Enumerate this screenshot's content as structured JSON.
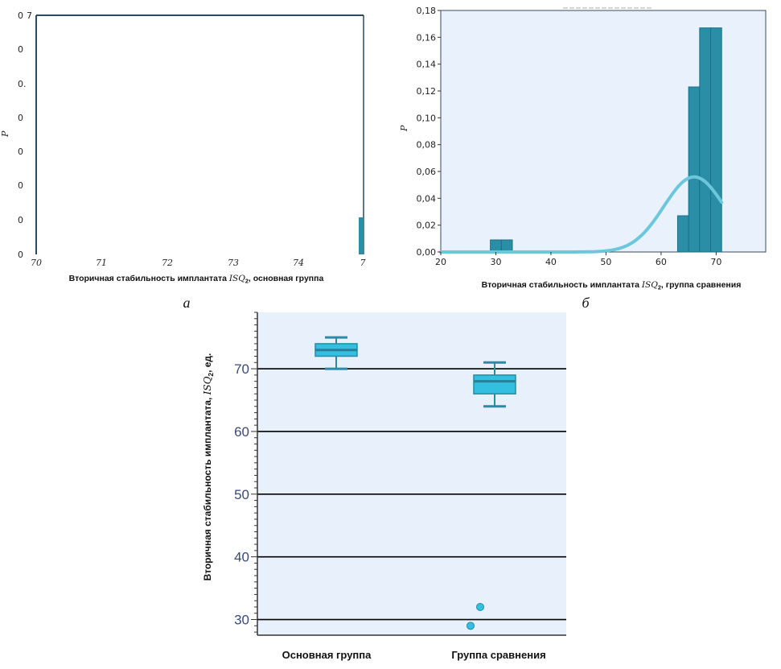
{
  "chart_data": [
    {
      "id": "a",
      "type": "bar",
      "panel_label": "а",
      "ylabel": "P",
      "xlabel": "Вторичная стабильность имплантата",
      "xlabel_var": "ISQ",
      "xlabel_sub": "2",
      "xlabel_suffix": ",   основная группа",
      "y_tick_labels": [
        "0",
        "0",
        "0",
        "0",
        "0",
        "0.",
        "0",
        "0",
        "0"
      ],
      "y_top_label": "7",
      "x_tick_labels": [
        "70",
        "71",
        "72",
        "73",
        "74",
        "7"
      ],
      "values": [
        0.03
      ],
      "note": "cropped panel, only a sliver of a bar at right edge visible"
    },
    {
      "id": "b",
      "type": "bar",
      "panel_label": "б",
      "ylabel": "P",
      "xlabel": "Вторичная стабильность имплантата",
      "xlabel_var": "ISQ",
      "xlabel_sub": "2",
      "xlabel_suffix": ",  группа сравнения",
      "xlim": [
        20,
        79
      ],
      "ylim": [
        0,
        0.18
      ],
      "x_ticks": [
        20,
        30,
        40,
        50,
        60,
        70
      ],
      "x_tick_labels": [
        "20",
        "30",
        "40",
        "50",
        "60",
        "70"
      ],
      "y_ticks": [
        0,
        0.02,
        0.04,
        0.06,
        0.08,
        0.1,
        0.12,
        0.14,
        0.16,
        0.18
      ],
      "y_tick_labels": [
        "0,00",
        "0,02",
        "0,04",
        "0,06",
        "0,08",
        "0,10",
        "0,12",
        "0,14",
        "0,16",
        "0,18"
      ],
      "bins": [
        {
          "x0": 29,
          "x1": 31,
          "value": 0.009
        },
        {
          "x0": 31,
          "x1": 33,
          "value": 0.009
        },
        {
          "x0": 63,
          "x1": 65,
          "value": 0.027
        },
        {
          "x0": 65,
          "x1": 67,
          "value": 0.123
        },
        {
          "x0": 67,
          "x1": 69,
          "value": 0.167
        },
        {
          "x0": 69,
          "x1": 71,
          "value": 0.167
        }
      ],
      "density_curve": {
        "mean": 66,
        "sd": 5.5,
        "scale": 0.056,
        "x_from": 20,
        "x_to": 71
      }
    },
    {
      "id": "box",
      "type": "box",
      "ylabel": "Вторичная стабильность имплантата, ",
      "ylabel_var": "ISQ",
      "ylabel_sub": "2",
      "ylabel_suffix": ", ед.",
      "categories": [
        "Основная группа",
        "Группа сравнения"
      ],
      "ylim": [
        27.5,
        79
      ],
      "y_ticks": [
        30,
        40,
        50,
        60,
        70
      ],
      "y_tick_labels": [
        "30",
        "40",
        "50",
        "60",
        "70"
      ],
      "boxes": [
        {
          "name": "Основная группа",
          "whisker_low": 70,
          "q1": 72,
          "median": 73,
          "q3": 74,
          "whisker_high": 75,
          "outliers": []
        },
        {
          "name": "Группа сравнения",
          "whisker_low": 64,
          "q1": 66,
          "median": 68,
          "q3": 69,
          "whisker_high": 71,
          "outliers": [
            29,
            32
          ]
        }
      ]
    }
  ]
}
